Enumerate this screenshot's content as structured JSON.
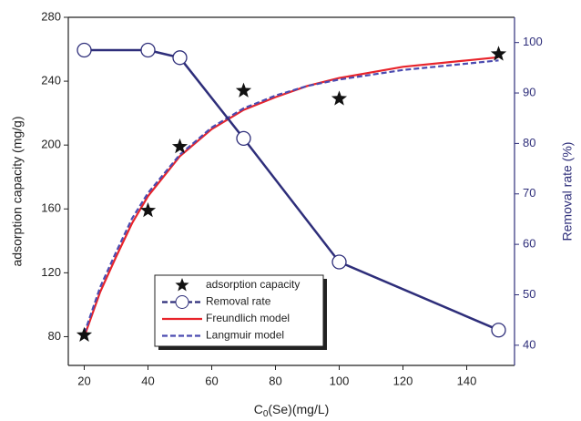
{
  "chart_data": {
    "type": "line",
    "x_label": {
      "main": "C",
      "sub": "0",
      "rest": "(Se)(mg/L)"
    },
    "y_label": "adsorption capacity (mg/g)",
    "y2_label": "Removal rate (%)",
    "xlim": [
      15,
      155
    ],
    "xticks": [
      20,
      40,
      60,
      80,
      100,
      120,
      140
    ],
    "ylim": [
      62,
      280
    ],
    "yticks": [
      80,
      120,
      160,
      200,
      240,
      280
    ],
    "y2lim": [
      36,
      105
    ],
    "y2ticks": [
      40,
      50,
      60,
      70,
      80,
      90,
      100
    ],
    "legend": "lower-center",
    "series": [
      {
        "name": "adsorption capacity",
        "color": "#111111",
        "style": "star",
        "x": [
          20,
          40,
          50,
          70,
          100,
          150
        ],
        "values": [
          81,
          159,
          199,
          234,
          229,
          257
        ]
      },
      {
        "name": "Removal rate",
        "color": "#2e2e7a",
        "style": "line-circle",
        "axis": "y2",
        "x": [
          20,
          40,
          50,
          70,
          100,
          150
        ],
        "values": [
          98.5,
          98.5,
          97,
          81,
          56.5,
          43
        ]
      },
      {
        "name": "Freundlich model",
        "color": "#e8242b",
        "style": "solid",
        "x": [
          20,
          25,
          30,
          35,
          40,
          50,
          60,
          70,
          80,
          90,
          100,
          120,
          140,
          150
        ],
        "values": [
          80,
          108,
          130,
          151,
          168,
          193,
          210,
          222,
          230,
          237,
          242,
          249,
          253,
          255
        ]
      },
      {
        "name": "Langmuir model",
        "color": "#4b4bb0",
        "style": "dashed",
        "x": [
          20,
          25,
          30,
          35,
          40,
          50,
          60,
          70,
          80,
          90,
          100,
          120,
          140,
          150
        ],
        "values": [
          82,
          111,
          133,
          154,
          170,
          194,
          211,
          223,
          231,
          237,
          241,
          247,
          251,
          253
        ]
      }
    ]
  }
}
